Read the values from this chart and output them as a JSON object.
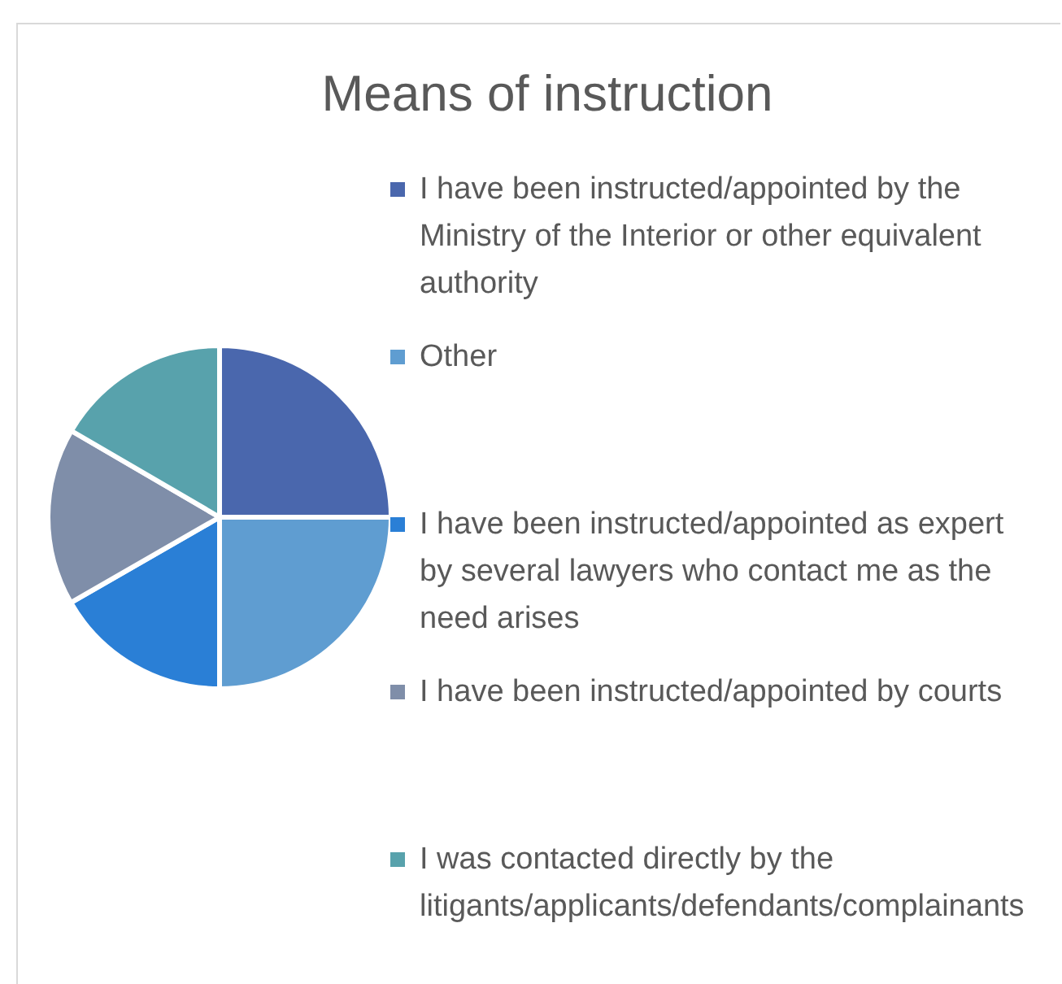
{
  "chart_data": {
    "type": "pie",
    "title": "Means of instruction",
    "categories": [
      "I have been instructed/appointed by the Ministry of the Interior or other equivalent authority",
      "Other",
      "I have been instructed/appointed as expert by several lawyers who contact me as the need arises",
      "I have been instructed/appointed by courts",
      "I was contacted directly by the litigants/applicants/defendants/complainants"
    ],
    "values": [
      25,
      25,
      16.7,
      16.7,
      16.6
    ],
    "colors": [
      "#4a67ad",
      "#5f9dd1",
      "#2a7fd6",
      "#7f8ea9",
      "#58a2ac"
    ],
    "legend": "right"
  }
}
